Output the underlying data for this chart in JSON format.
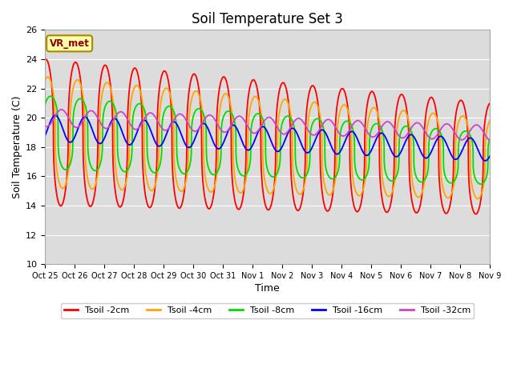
{
  "title": "Soil Temperature Set 3",
  "xlabel": "Time",
  "ylabel": "Soil Temperature (C)",
  "ylim": [
    10,
    26
  ],
  "annotation": "VR_met",
  "bg_color": "#dcdcdc",
  "fig_color": "#ffffff",
  "line_colors": {
    "2cm": "#ff0000",
    "4cm": "#ffa500",
    "8cm": "#00dd00",
    "16cm": "#0000ff",
    "32cm": "#cc44cc"
  },
  "legend_labels": [
    "Tsoil -2cm",
    "Tsoil -4cm",
    "Tsoil -8cm",
    "Tsoil -16cm",
    "Tsoil -32cm"
  ],
  "xtick_labels": [
    "Oct 25",
    "Oct 26",
    "Oct 27",
    "Oct 28",
    "Oct 29",
    "Oct 30",
    "Oct 31",
    "Nov 1",
    "Nov 2",
    "Nov 3",
    "Nov 4",
    "Nov 5",
    "Nov 6",
    "Nov 7",
    "Nov 8",
    "Nov 9"
  ],
  "grid_color": "#ffffff",
  "period_days": 1.0,
  "start_day": 0,
  "end_day": 15,
  "num_points": 3000
}
